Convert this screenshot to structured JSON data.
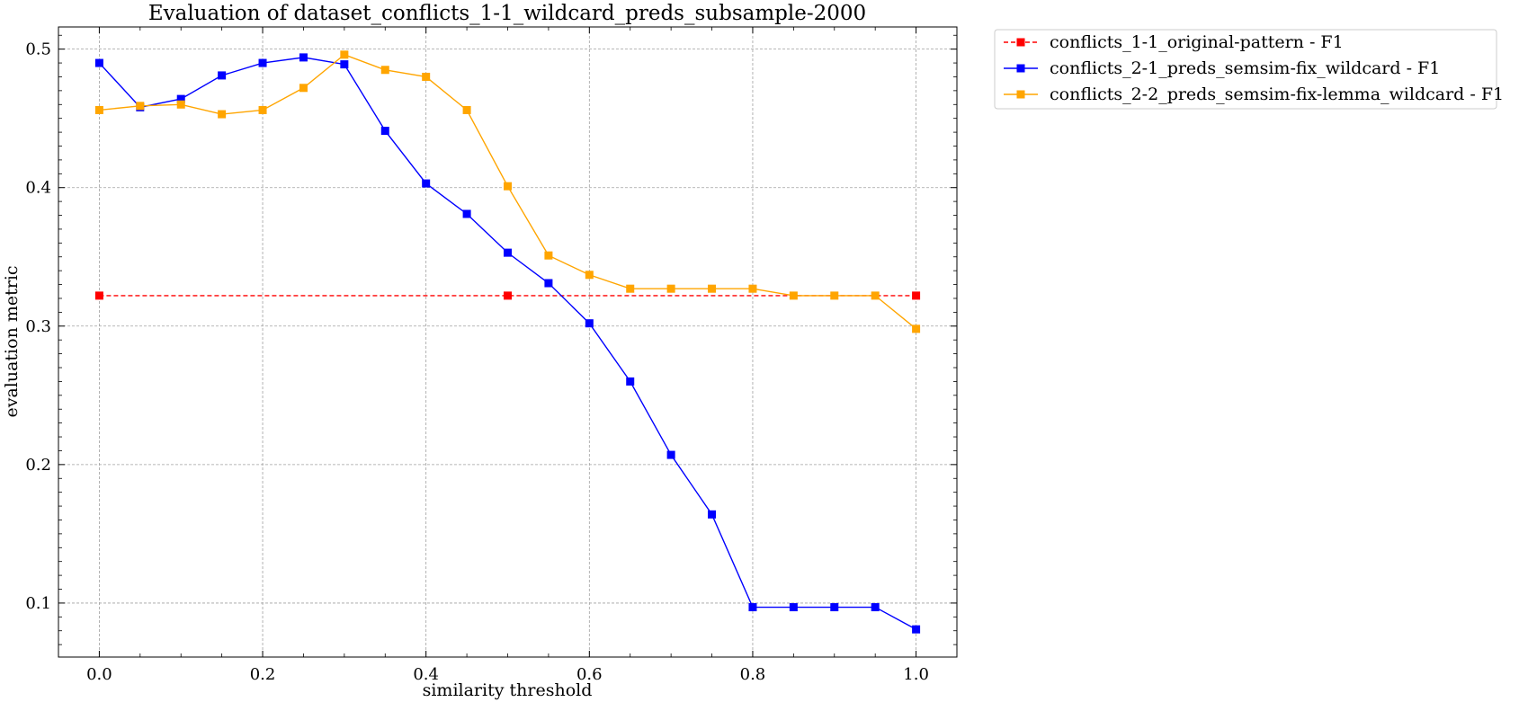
{
  "chart_data": {
    "type": "line",
    "title": "Evaluation of dataset_conflicts_1-1_wildcard_preds_subsample-2000",
    "xlabel": "similarity threshold",
    "ylabel": "evaluation metric",
    "xlim": [
      -0.05,
      1.05
    ],
    "ylim": [
      0.061,
      0.516
    ],
    "x_ticks": [
      0.0,
      0.2,
      0.4,
      0.6,
      0.8,
      1.0
    ],
    "x_tick_labels": [
      "0.0",
      "0.2",
      "0.4",
      "0.6",
      "0.8",
      "1.0"
    ],
    "y_ticks": [
      0.1,
      0.2,
      0.3,
      0.4,
      0.5
    ],
    "y_tick_labels": [
      "0.1",
      "0.2",
      "0.3",
      "0.4",
      "0.5"
    ],
    "grid": true,
    "legend_position": "outside top-right",
    "series": [
      {
        "name": "conflicts_1-1_original-pattern - F1",
        "color": "#ff0000",
        "line_style": "dashed",
        "marker": "square",
        "x": [
          0.0,
          0.5,
          1.0
        ],
        "y": [
          0.322,
          0.322,
          0.322
        ]
      },
      {
        "name": "conflicts_2-1_preds_semsim-fix_wildcard - F1",
        "color": "#0000ff",
        "line_style": "solid",
        "marker": "square",
        "x": [
          0.0,
          0.05,
          0.1,
          0.15,
          0.2,
          0.25,
          0.3,
          0.35,
          0.4,
          0.45,
          0.5,
          0.55,
          0.6,
          0.65,
          0.7,
          0.75,
          0.8,
          0.85,
          0.9,
          0.95,
          1.0
        ],
        "y": [
          0.49,
          0.458,
          0.464,
          0.481,
          0.49,
          0.494,
          0.489,
          0.441,
          0.403,
          0.381,
          0.353,
          0.331,
          0.302,
          0.26,
          0.207,
          0.164,
          0.097,
          0.097,
          0.097,
          0.097,
          0.081
        ]
      },
      {
        "name": "conflicts_2-2_preds_semsim-fix-lemma_wildcard - F1",
        "color": "#ffa500",
        "line_style": "solid",
        "marker": "square",
        "x": [
          0.0,
          0.05,
          0.1,
          0.15,
          0.2,
          0.25,
          0.3,
          0.35,
          0.4,
          0.45,
          0.5,
          0.55,
          0.6,
          0.65,
          0.7,
          0.75,
          0.8,
          0.85,
          0.9,
          0.95,
          1.0
        ],
        "y": [
          0.456,
          0.459,
          0.46,
          0.453,
          0.456,
          0.472,
          0.496,
          0.485,
          0.48,
          0.456,
          0.401,
          0.351,
          0.337,
          0.327,
          0.327,
          0.327,
          0.327,
          0.322,
          0.322,
          0.322,
          0.298
        ]
      }
    ]
  }
}
